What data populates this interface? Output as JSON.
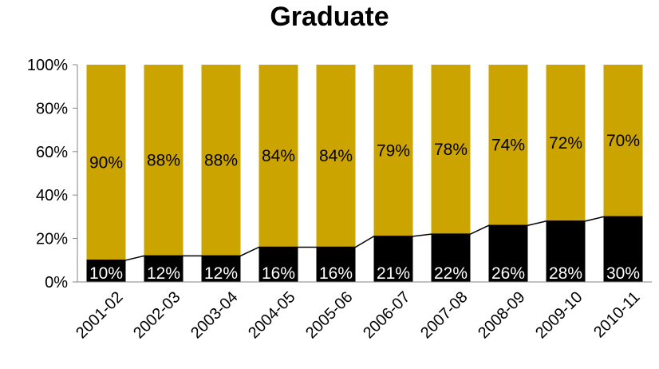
{
  "chart_data": {
    "type": "bar",
    "stacked": "percent",
    "title": "Graduate",
    "categories": [
      "2001-02",
      "2002-03",
      "2003-04",
      "2004-05",
      "2005-06",
      "2006-07",
      "2007-08",
      "2008-09",
      "2009-10",
      "2010-11"
    ],
    "series": [
      {
        "values": [
          10,
          12,
          12,
          16,
          16,
          21,
          22,
          26,
          28,
          30
        ],
        "color": "#000000",
        "labels": [
          "10%",
          "12%",
          "12%",
          "16%",
          "16%",
          "21%",
          "22%",
          "26%",
          "28%",
          "30%"
        ]
      },
      {
        "values": [
          90,
          88,
          88,
          84,
          84,
          79,
          78,
          74,
          72,
          70
        ],
        "color": "#CCA400",
        "labels": [
          "90%",
          "88%",
          "88%",
          "84%",
          "84%",
          "79%",
          "78%",
          "74%",
          "72%",
          "70%"
        ]
      }
    ],
    "trend_line": {
      "series_index": 0,
      "color": "#000000"
    },
    "yticks": [
      "0%",
      "20%",
      "40%",
      "60%",
      "80%",
      "100%"
    ],
    "ylim": [
      0,
      100
    ],
    "xlabel": "",
    "ylabel": "",
    "grid": false,
    "legend": "none"
  }
}
